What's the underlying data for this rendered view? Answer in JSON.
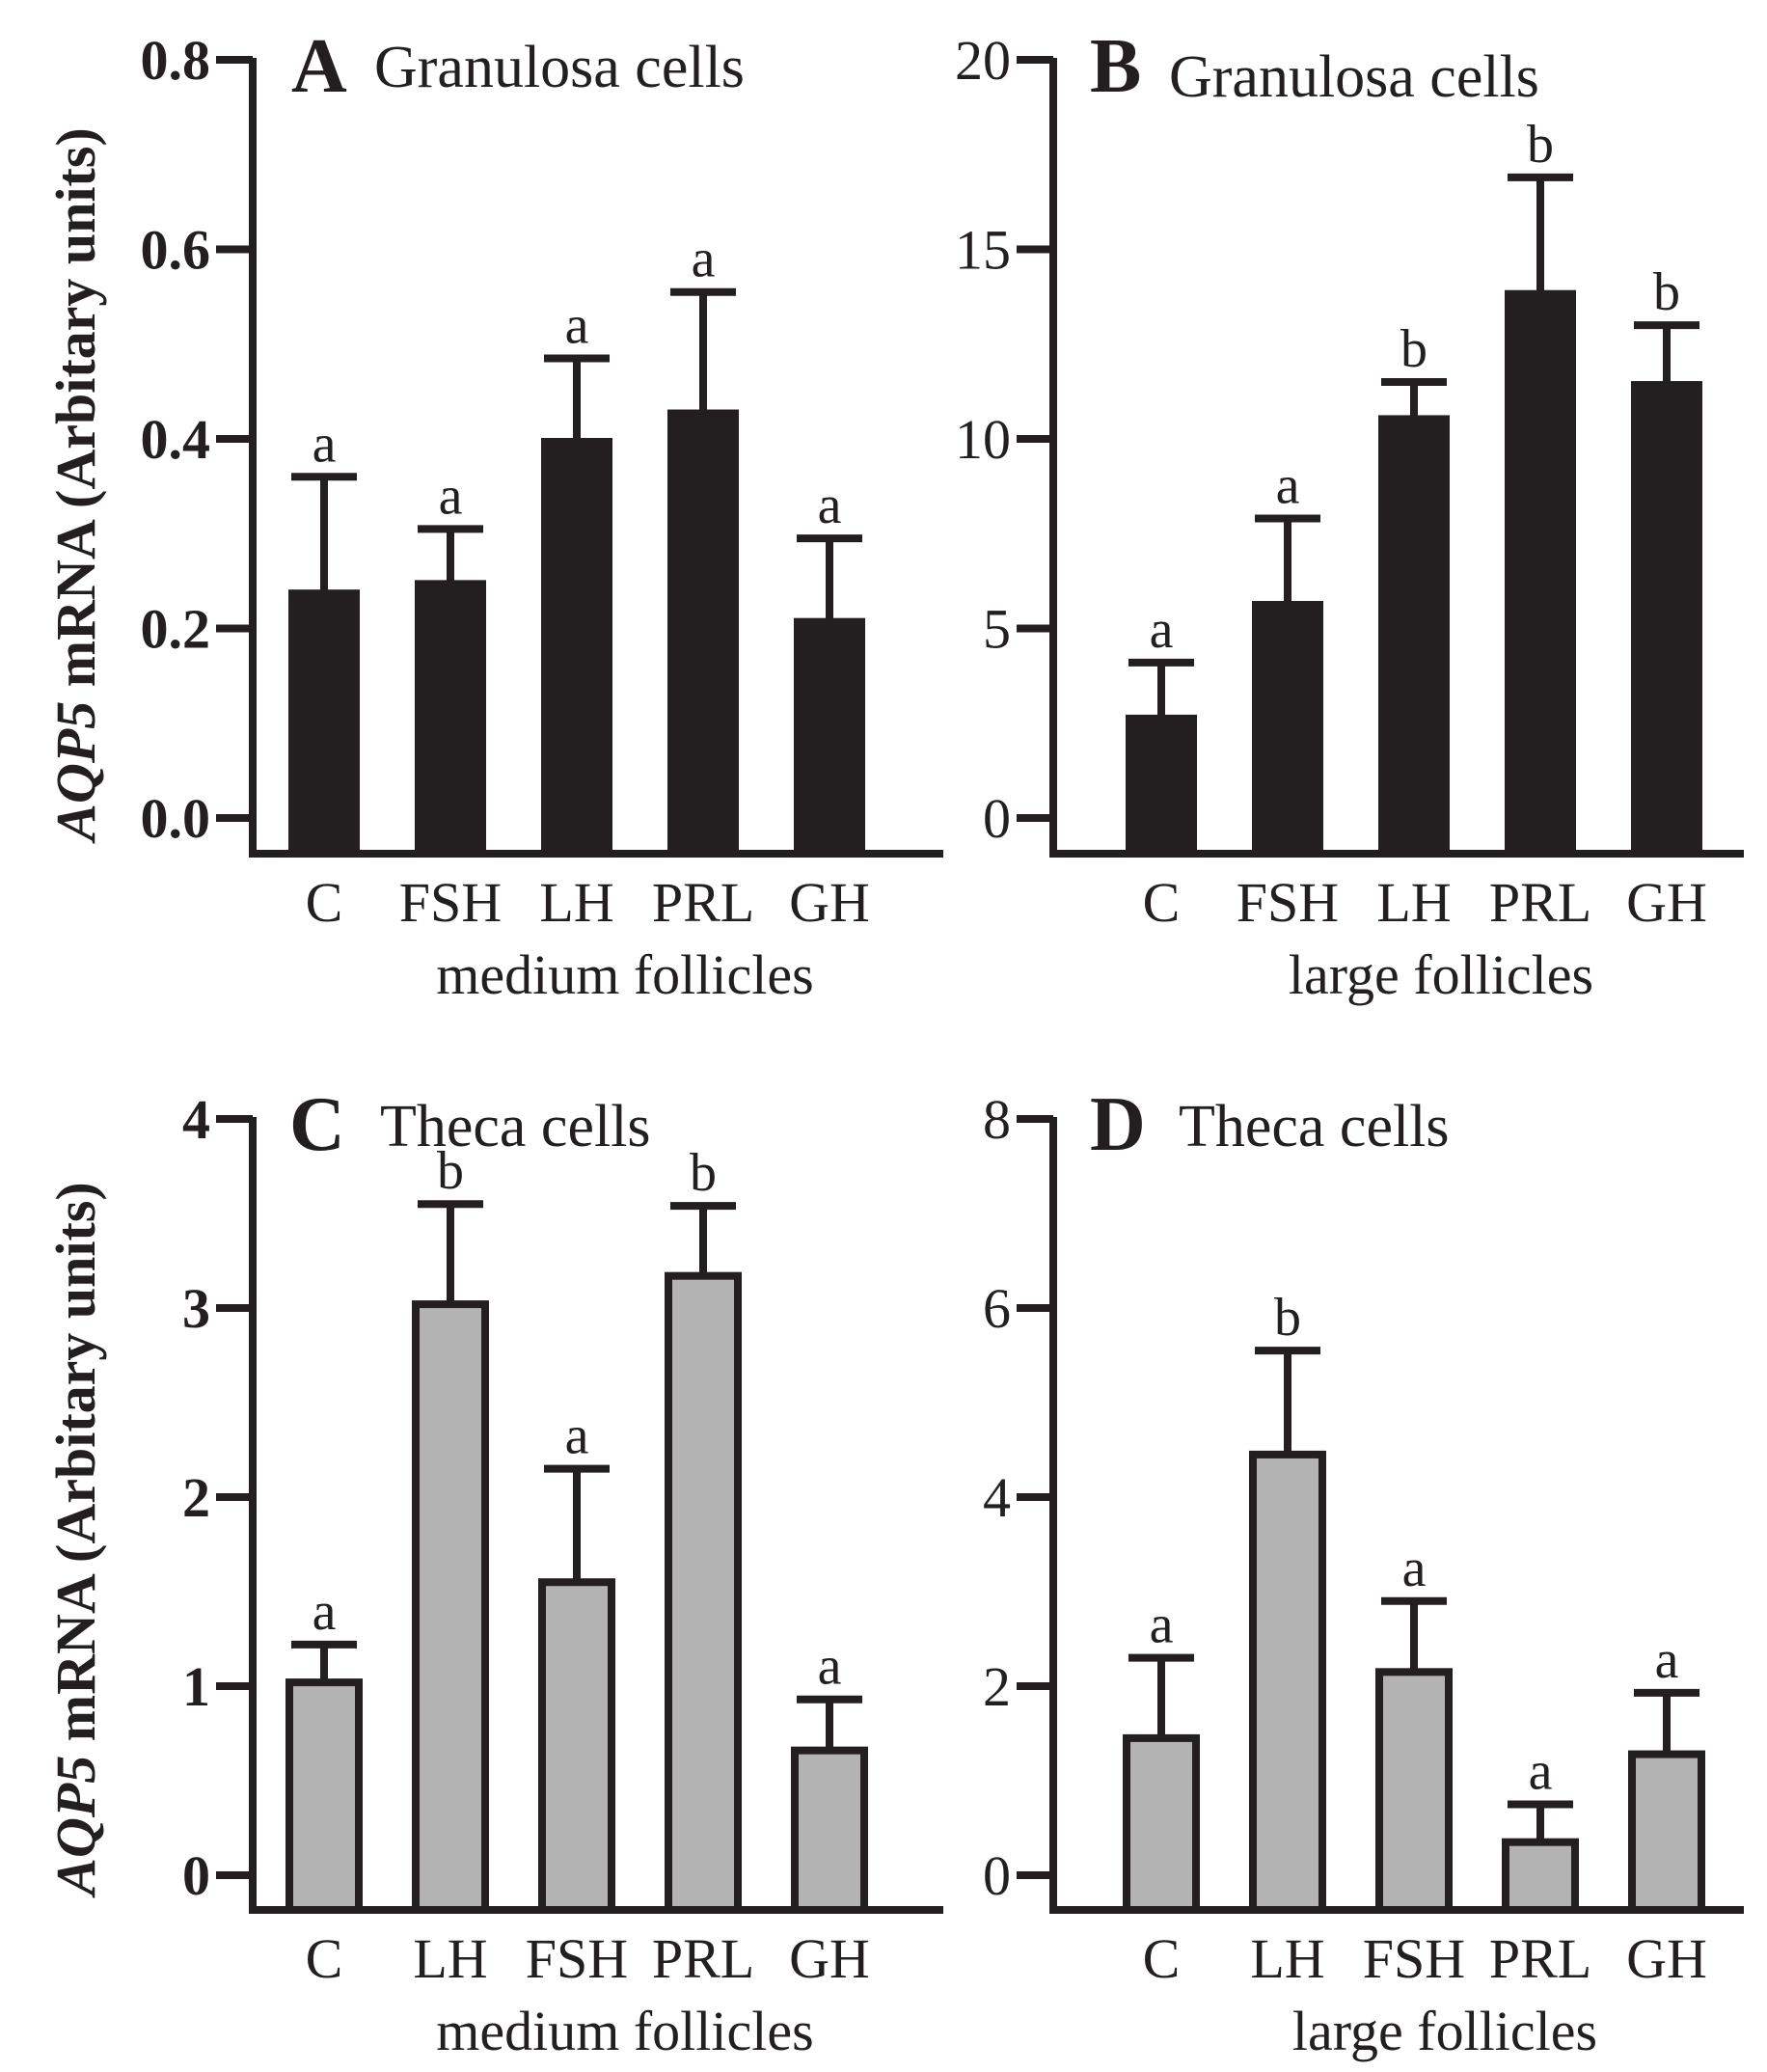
{
  "chart_data": [
    {
      "type": "bar",
      "panel": "A",
      "title": "Granulosa cells",
      "xlabel": "medium follicles",
      "ylabel_italic": "AQP5",
      "ylabel_rest": " mRNA (Arbitary units)",
      "ylim": [
        0,
        0.8
      ],
      "yticks": [
        0.0,
        0.2,
        0.4,
        0.6,
        0.8
      ],
      "ytick_labels": [
        "0.0",
        "0.2",
        "0.4",
        "0.6",
        "0.8"
      ],
      "categories": [
        "C",
        "FSH",
        "LH",
        "PRL",
        "GH"
      ],
      "values": [
        0.24,
        0.25,
        0.4,
        0.43,
        0.21
      ],
      "errors": [
        0.12,
        0.055,
        0.085,
        0.125,
        0.085
      ],
      "significance": [
        "a",
        "a",
        "a",
        "a",
        "a"
      ],
      "bar_color": "#231f20"
    },
    {
      "type": "bar",
      "panel": "B",
      "title": "Granulosa cells",
      "xlabel": "large follicles",
      "ylim": [
        0,
        20
      ],
      "yticks": [
        0,
        5,
        10,
        15,
        20
      ],
      "ytick_labels": [
        "0",
        "5",
        "10",
        "15",
        "20"
      ],
      "categories": [
        "C",
        "FSH",
        "LH",
        "PRL",
        "GH"
      ],
      "values": [
        2.7,
        5.7,
        10.6,
        13.9,
        11.5
      ],
      "errors": [
        1.4,
        2.2,
        0.9,
        3.0,
        1.5
      ],
      "significance": [
        "a",
        "a",
        "b",
        "b",
        "b"
      ],
      "bar_color": "#231f20"
    },
    {
      "type": "bar",
      "panel": "C",
      "title": "Theca cells",
      "xlabel": "medium follicles",
      "ylabel_italic": "AQP5",
      "ylabel_rest": " mRNA (Arbitary units)",
      "ylim": [
        0,
        4
      ],
      "yticks": [
        0,
        1,
        2,
        3,
        4
      ],
      "ytick_labels": [
        "0",
        "1",
        "2",
        "3",
        "4"
      ],
      "categories": [
        "C",
        "LH",
        "FSH",
        "PRL",
        "GH"
      ],
      "values": [
        1.02,
        3.02,
        1.55,
        3.17,
        0.66
      ],
      "errors": [
        0.2,
        0.53,
        0.6,
        0.37,
        0.27
      ],
      "significance": [
        "a",
        "b",
        "a",
        "b",
        "a"
      ],
      "bar_color": "#b2b3b2"
    },
    {
      "type": "bar",
      "panel": "D",
      "title": "Theca cells",
      "xlabel": "large follicles",
      "ylim": [
        0,
        8
      ],
      "yticks": [
        0,
        2,
        4,
        6,
        8
      ],
      "ytick_labels": [
        "0",
        "2",
        "4",
        "6",
        "8"
      ],
      "categories": [
        "C",
        "LH",
        "FSH",
        "PRL",
        "GH"
      ],
      "values": [
        1.45,
        4.45,
        2.15,
        0.35,
        1.28
      ],
      "errors": [
        0.85,
        1.1,
        0.75,
        0.4,
        0.65
      ],
      "significance": [
        "a",
        "b",
        "a",
        "a",
        "a"
      ],
      "bar_color": "#b2b3b2"
    }
  ],
  "ink_color": "#231f20"
}
